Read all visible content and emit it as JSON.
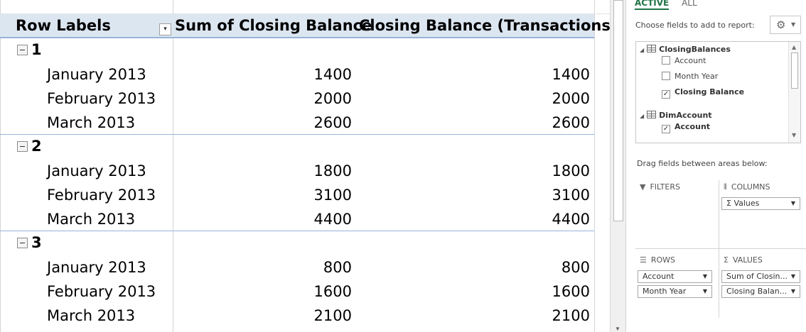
{
  "pivot": {
    "headers": [
      "Row Labels",
      "Sum of Closing Balance",
      "Closing Balance (Transactions)"
    ],
    "filter_glyph": "▾",
    "groups": [
      {
        "label": "1",
        "rows": [
          {
            "label": "January 2013",
            "sum": "1400",
            "trans": "1400"
          },
          {
            "label": "February 2013",
            "sum": "2000",
            "trans": "2000"
          },
          {
            "label": "March 2013",
            "sum": "2600",
            "trans": "2600"
          }
        ]
      },
      {
        "label": "2",
        "rows": [
          {
            "label": "January 2013",
            "sum": "1800",
            "trans": "1800"
          },
          {
            "label": "February 2013",
            "sum": "3100",
            "trans": "3100"
          },
          {
            "label": "March 2013",
            "sum": "4400",
            "trans": "4400"
          }
        ]
      },
      {
        "label": "3",
        "rows": [
          {
            "label": "January 2013",
            "sum": "800",
            "trans": "800"
          },
          {
            "label": "February 2013",
            "sum": "1600",
            "trans": "1600"
          },
          {
            "label": "March 2013",
            "sum": "2100",
            "trans": "2100"
          }
        ]
      }
    ]
  },
  "pane": {
    "tab_active": "ACTIVE",
    "tab_all": "ALL",
    "choose_label": "Choose fields to add to report:",
    "gear_icon": "gear-icon",
    "tables": [
      {
        "name": "ClosingBalances",
        "fields": [
          {
            "name": "Account",
            "checked": false
          },
          {
            "name": "Month Year",
            "checked": false
          },
          {
            "name": "Closing Balance",
            "checked": true
          }
        ]
      },
      {
        "name": "DimAccount",
        "fields": [
          {
            "name": "Account",
            "checked": true
          }
        ]
      }
    ],
    "drag_label": "Drag fields between areas below:",
    "areas": {
      "filters": {
        "title": "FILTERS",
        "chips": []
      },
      "columns": {
        "title": "COLUMNS",
        "chips": [
          "Σ Values"
        ]
      },
      "rows": {
        "title": "ROWS",
        "chips": [
          "Account",
          "Month Year"
        ]
      },
      "values": {
        "title": "VALUES",
        "chips": [
          "Sum of Closin...",
          "Closing Balan..."
        ]
      }
    }
  },
  "colors": {
    "header_fill": "#dce6f1",
    "header_border": "#95b3d7",
    "accent_green": "#217346"
  }
}
